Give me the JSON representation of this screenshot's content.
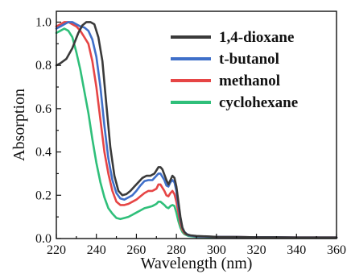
{
  "chart_data": {
    "type": "line",
    "title": "",
    "xlabel": "Wavelength  (nm)",
    "ylabel": "Absorption",
    "xlim": [
      220,
      360
    ],
    "ylim": [
      0,
      1.05
    ],
    "xticks": [
      220,
      240,
      260,
      280,
      300,
      320,
      340,
      360
    ],
    "yticks": [
      0.0,
      0.2,
      0.4,
      0.6,
      0.8,
      1.0
    ],
    "xtick_labels": [
      "220",
      "240",
      "260",
      "280",
      "300",
      "320",
      "340",
      "360"
    ],
    "ytick_labels": [
      "0.0",
      "0.2",
      "0.4",
      "0.6",
      "0.8",
      "1.0"
    ],
    "legend": "top-right",
    "grid": false,
    "series": [
      {
        "name": "1,4-dioxane",
        "color": "#3a3a3a",
        "x": [
          220,
          222,
          225,
          228,
          231,
          233,
          235,
          237,
          239,
          241,
          243,
          245,
          247,
          249,
          251,
          253,
          255,
          257,
          259,
          261,
          263,
          265,
          267,
          269,
          271,
          272,
          273,
          275,
          276,
          277,
          278,
          279,
          280,
          281,
          282,
          283,
          284,
          285,
          287,
          290,
          295,
          300,
          310,
          320,
          330,
          340,
          350,
          360
        ],
        "y": [
          0.8,
          0.81,
          0.83,
          0.88,
          0.95,
          0.985,
          1.0,
          1.0,
          0.99,
          0.93,
          0.82,
          0.62,
          0.42,
          0.29,
          0.22,
          0.2,
          0.205,
          0.22,
          0.24,
          0.26,
          0.28,
          0.29,
          0.29,
          0.3,
          0.33,
          0.33,
          0.32,
          0.27,
          0.25,
          0.27,
          0.29,
          0.28,
          0.24,
          0.17,
          0.1,
          0.05,
          0.03,
          0.02,
          0.015,
          0.012,
          0.01,
          0.008,
          0.007,
          0.006,
          0.006,
          0.005,
          0.005,
          0.005
        ]
      },
      {
        "name": "t-butanol",
        "color": "#3f6fc9",
        "x": [
          220,
          222,
          224,
          226,
          228,
          230,
          232,
          234,
          236,
          238,
          240,
          242,
          244,
          246,
          248,
          250,
          252,
          254,
          256,
          258,
          260,
          262,
          264,
          266,
          268,
          270,
          271,
          272,
          274,
          275,
          276,
          277,
          278,
          279,
          280,
          281,
          282,
          283,
          284,
          286,
          290,
          300,
          310,
          320,
          330,
          340,
          350,
          360
        ],
        "y": [
          0.97,
          0.98,
          0.99,
          1.0,
          1.0,
          0.99,
          0.98,
          0.975,
          0.96,
          0.92,
          0.84,
          0.7,
          0.52,
          0.37,
          0.27,
          0.21,
          0.185,
          0.18,
          0.19,
          0.2,
          0.22,
          0.245,
          0.265,
          0.27,
          0.27,
          0.29,
          0.3,
          0.3,
          0.27,
          0.245,
          0.24,
          0.26,
          0.27,
          0.26,
          0.22,
          0.15,
          0.09,
          0.05,
          0.03,
          0.015,
          0.01,
          0.008,
          0.007,
          0.006,
          0.006,
          0.005,
          0.005,
          0.005
        ]
      },
      {
        "name": "methanol",
        "color": "#e64545",
        "x": [
          220,
          222,
          224,
          226,
          228,
          230,
          232,
          234,
          236,
          238,
          240,
          242,
          244,
          246,
          248,
          250,
          252,
          254,
          256,
          258,
          260,
          262,
          264,
          266,
          268,
          270,
          271,
          272,
          274,
          275,
          276,
          277,
          278,
          279,
          280,
          281,
          282,
          283,
          284,
          286,
          290,
          300,
          310,
          320,
          330,
          340,
          350,
          360
        ],
        "y": [
          0.98,
          0.99,
          1.0,
          1.0,
          0.99,
          0.98,
          0.96,
          0.93,
          0.9,
          0.82,
          0.7,
          0.55,
          0.4,
          0.3,
          0.22,
          0.17,
          0.155,
          0.155,
          0.16,
          0.17,
          0.18,
          0.195,
          0.21,
          0.22,
          0.22,
          0.23,
          0.25,
          0.25,
          0.22,
          0.2,
          0.195,
          0.21,
          0.22,
          0.205,
          0.17,
          0.12,
          0.07,
          0.04,
          0.025,
          0.015,
          0.01,
          0.008,
          0.007,
          0.006,
          0.006,
          0.005,
          0.005,
          0.005
        ]
      },
      {
        "name": "cyclohexane",
        "color": "#2fbf7a",
        "x": [
          220,
          222,
          224,
          226,
          228,
          230,
          232,
          234,
          236,
          238,
          240,
          242,
          244,
          246,
          248,
          250,
          252,
          254,
          256,
          258,
          260,
          262,
          264,
          266,
          268,
          270,
          271,
          272,
          274,
          275,
          276,
          277,
          278,
          279,
          280,
          281,
          282,
          283,
          284,
          286,
          290,
          300,
          310,
          320,
          330,
          340,
          350,
          360
        ],
        "y": [
          0.95,
          0.96,
          0.97,
          0.96,
          0.93,
          0.86,
          0.78,
          0.68,
          0.58,
          0.46,
          0.35,
          0.26,
          0.19,
          0.14,
          0.115,
          0.095,
          0.09,
          0.095,
          0.1,
          0.11,
          0.12,
          0.13,
          0.14,
          0.145,
          0.15,
          0.16,
          0.17,
          0.17,
          0.155,
          0.145,
          0.14,
          0.15,
          0.155,
          0.15,
          0.12,
          0.08,
          0.05,
          0.03,
          0.02,
          0.012,
          0.008,
          0.006,
          0.005,
          0.005,
          0.005,
          0.004,
          0.004,
          0.004
        ]
      }
    ]
  }
}
